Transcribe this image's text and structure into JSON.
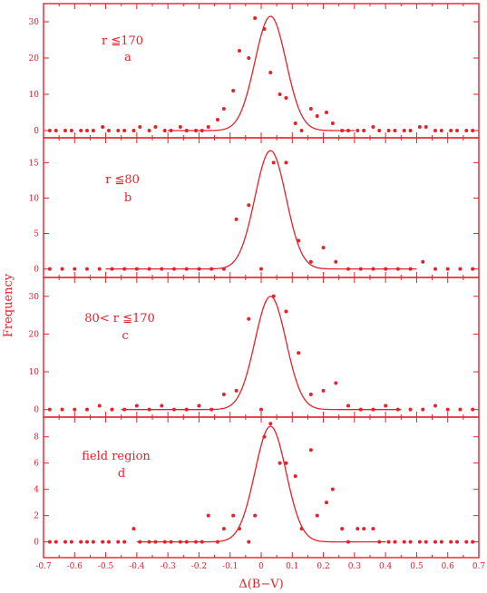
{
  "chart_data": {
    "type": "scatter",
    "color": "#e8202a",
    "xlabel": "Δ(B−V)",
    "ylabel": "Frequency",
    "xlim": [
      -0.7,
      0.7
    ],
    "x_ticks": [
      -0.7,
      -0.6,
      -0.5,
      -0.4,
      -0.3,
      -0.2,
      -0.1,
      0,
      0.1,
      0.2,
      0.3,
      0.4,
      0.5,
      0.6,
      0.7
    ],
    "x_tick_labels": [
      "-0.7",
      "-0.6",
      "-0.5",
      "-0.4",
      "-0.3",
      "-0.2",
      "-0.1",
      "0",
      "0.1",
      "0.2",
      "0.3",
      "0.4",
      "0.5",
      "0.6",
      "0.7"
    ],
    "panels": [
      {
        "label_line1": "r ≦170",
        "label_line2": "a",
        "ylim": [
          -2,
          35
        ],
        "y_ticks": [
          0,
          10,
          20,
          30
        ],
        "y_tick_labels": [
          "0",
          "10",
          "20",
          "30"
        ],
        "fit": {
          "amplitude": 31.5,
          "mean": 0.03,
          "sigma": 0.05,
          "x_range": [
            -0.3,
            0.3
          ]
        },
        "points": {
          "x": [
            -0.68,
            -0.66,
            -0.63,
            -0.61,
            -0.58,
            -0.56,
            -0.54,
            -0.51,
            -0.49,
            -0.46,
            -0.44,
            -0.41,
            -0.39,
            -0.36,
            -0.34,
            -0.31,
            -0.29,
            -0.26,
            -0.24,
            -0.21,
            -0.19,
            -0.17,
            -0.14,
            -0.12,
            -0.09,
            -0.07,
            -0.04,
            -0.02,
            0.01,
            0.03,
            0.06,
            0.08,
            0.11,
            0.13,
            0.16,
            0.18,
            0.21,
            0.23,
            0.26,
            0.28,
            0.31,
            0.33,
            0.36,
            0.38,
            0.41,
            0.43,
            0.46,
            0.48,
            0.51,
            0.53,
            0.56,
            0.58,
            0.61,
            0.63,
            0.66,
            0.68
          ],
          "y": [
            0,
            0,
            0,
            0,
            0,
            0,
            0,
            1,
            0,
            0,
            0,
            0,
            1,
            0,
            1,
            0,
            0,
            1,
            0,
            0,
            0,
            1,
            3,
            6,
            11,
            22,
            20,
            31,
            28,
            16,
            10,
            9,
            2,
            0,
            6,
            4,
            5,
            2,
            0,
            0,
            0,
            0,
            1,
            0,
            0,
            0,
            0,
            0,
            1,
            1,
            0,
            0,
            0,
            0,
            0,
            0
          ]
        }
      },
      {
        "label_line1": "r ≦80",
        "label_line2": "b",
        "ylim": [
          -1.2,
          18.5
        ],
        "y_ticks": [
          0,
          5,
          10,
          15
        ],
        "y_tick_labels": [
          "0",
          "5",
          "10",
          "15"
        ],
        "fit": {
          "amplitude": 16.7,
          "mean": 0.03,
          "sigma": 0.05,
          "x_range": [
            -0.5,
            0.5
          ]
        },
        "points": {
          "x": [
            -0.68,
            -0.64,
            -0.6,
            -0.56,
            -0.52,
            -0.48,
            -0.44,
            -0.4,
            -0.36,
            -0.32,
            -0.28,
            -0.24,
            -0.2,
            -0.16,
            -0.12,
            -0.08,
            -0.04,
            0,
            0.04,
            0.08,
            0.12,
            0.16,
            0.2,
            0.24,
            0.28,
            0.32,
            0.36,
            0.4,
            0.44,
            0.48,
            0.52,
            0.56,
            0.6,
            0.64,
            0.68
          ],
          "y": [
            0,
            0,
            0,
            0,
            0,
            0,
            0,
            0,
            0,
            0,
            0,
            0,
            0,
            0,
            0,
            7,
            9,
            0,
            15,
            15,
            4,
            1,
            3,
            1,
            0,
            0,
            0,
            0,
            0,
            0,
            1,
            0,
            0,
            0,
            0
          ]
        }
      },
      {
        "label_line1": "80< r ≦170",
        "label_line2": "c",
        "ylim": [
          -2,
          35
        ],
        "y_ticks": [
          0,
          10,
          20,
          30
        ],
        "y_tick_labels": [
          "0",
          "10",
          "20",
          "30"
        ],
        "fit": {
          "amplitude": 30,
          "mean": 0.03,
          "sigma": 0.05,
          "x_range": [
            -0.45,
            0.45
          ]
        },
        "points": {
          "x": [
            -0.68,
            -0.64,
            -0.6,
            -0.56,
            -0.52,
            -0.48,
            -0.44,
            -0.4,
            -0.36,
            -0.32,
            -0.28,
            -0.24,
            -0.2,
            -0.16,
            -0.12,
            -0.08,
            -0.04,
            0,
            0.04,
            0.08,
            0.12,
            0.16,
            0.2,
            0.24,
            0.28,
            0.32,
            0.36,
            0.4,
            0.44,
            0.48,
            0.52,
            0.56,
            0.6,
            0.64,
            0.68
          ],
          "y": [
            0,
            0,
            0,
            0,
            1,
            0,
            0,
            1,
            0,
            1,
            0,
            0,
            1,
            0,
            4,
            5,
            24,
            0,
            30,
            26,
            15,
            4,
            5,
            7,
            1,
            0,
            0,
            1,
            0,
            0,
            0,
            1,
            0,
            0,
            0
          ]
        }
      },
      {
        "label_line1": "field region",
        "label_line2": "d",
        "ylim": [
          -1.2,
          9.5
        ],
        "y_ticks": [
          0,
          2,
          4,
          6,
          8
        ],
        "y_tick_labels": [
          "0",
          "2",
          "4",
          "6",
          "8"
        ],
        "fit": {
          "amplitude": 8.8,
          "mean": 0.03,
          "sigma": 0.05,
          "x_range": [
            -0.4,
            0.4
          ]
        },
        "points": {
          "x": [
            -0.68,
            -0.66,
            -0.63,
            -0.61,
            -0.58,
            -0.56,
            -0.54,
            -0.51,
            -0.49,
            -0.46,
            -0.44,
            -0.41,
            -0.39,
            -0.36,
            -0.34,
            -0.31,
            -0.29,
            -0.26,
            -0.24,
            -0.21,
            -0.19,
            -0.17,
            -0.14,
            -0.12,
            -0.09,
            -0.07,
            -0.04,
            -0.02,
            0.01,
            0.03,
            0.06,
            0.08,
            0.11,
            0.13,
            0.16,
            0.18,
            0.21,
            0.23,
            0.26,
            0.28,
            0.31,
            0.33,
            0.36,
            0.38,
            0.41,
            0.43,
            0.46,
            0.48,
            0.51,
            0.53,
            0.56,
            0.58,
            0.61,
            0.63,
            0.66,
            0.68
          ],
          "y": [
            0,
            0,
            0,
            0,
            0,
            0,
            0,
            0,
            0,
            0,
            0,
            1,
            0,
            0,
            0,
            0,
            0,
            0,
            0,
            0,
            0,
            2,
            0,
            1,
            2,
            1,
            0,
            2,
            8,
            9,
            6,
            6,
            5,
            1,
            7,
            2,
            3,
            4,
            1,
            0,
            1,
            1,
            1,
            0,
            0,
            0,
            0,
            0,
            0,
            0,
            0,
            0,
            0,
            0,
            0,
            0
          ]
        }
      }
    ]
  }
}
